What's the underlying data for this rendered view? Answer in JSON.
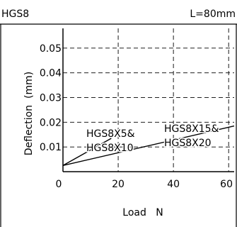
{
  "header": {
    "left": "HGS8",
    "right": "L=80mm"
  },
  "chart_data": {
    "type": "line",
    "xlabel": "Load   N",
    "ylabel": "Deflection  (mm)",
    "xlim": [
      0,
      62
    ],
    "ylim": [
      0,
      0.058
    ],
    "x_ticks": [
      "0",
      "20",
      "40",
      "60"
    ],
    "y_ticks": [
      "0.01",
      "0.02",
      "0.03",
      "0.04",
      "0.05"
    ],
    "grid": true,
    "grid_style": "dashed",
    "series": [
      {
        "label_lines": [
          "HGS8X5&",
          "HGS8X10"
        ],
        "x": [
          0,
          17.5
        ],
        "y": [
          0.0025,
          0.0135
        ]
      },
      {
        "label_lines": [
          "HGS8X15&",
          "HGS8X20"
        ],
        "x": [
          0,
          62
        ],
        "y": [
          0.0025,
          0.0185
        ]
      }
    ]
  }
}
